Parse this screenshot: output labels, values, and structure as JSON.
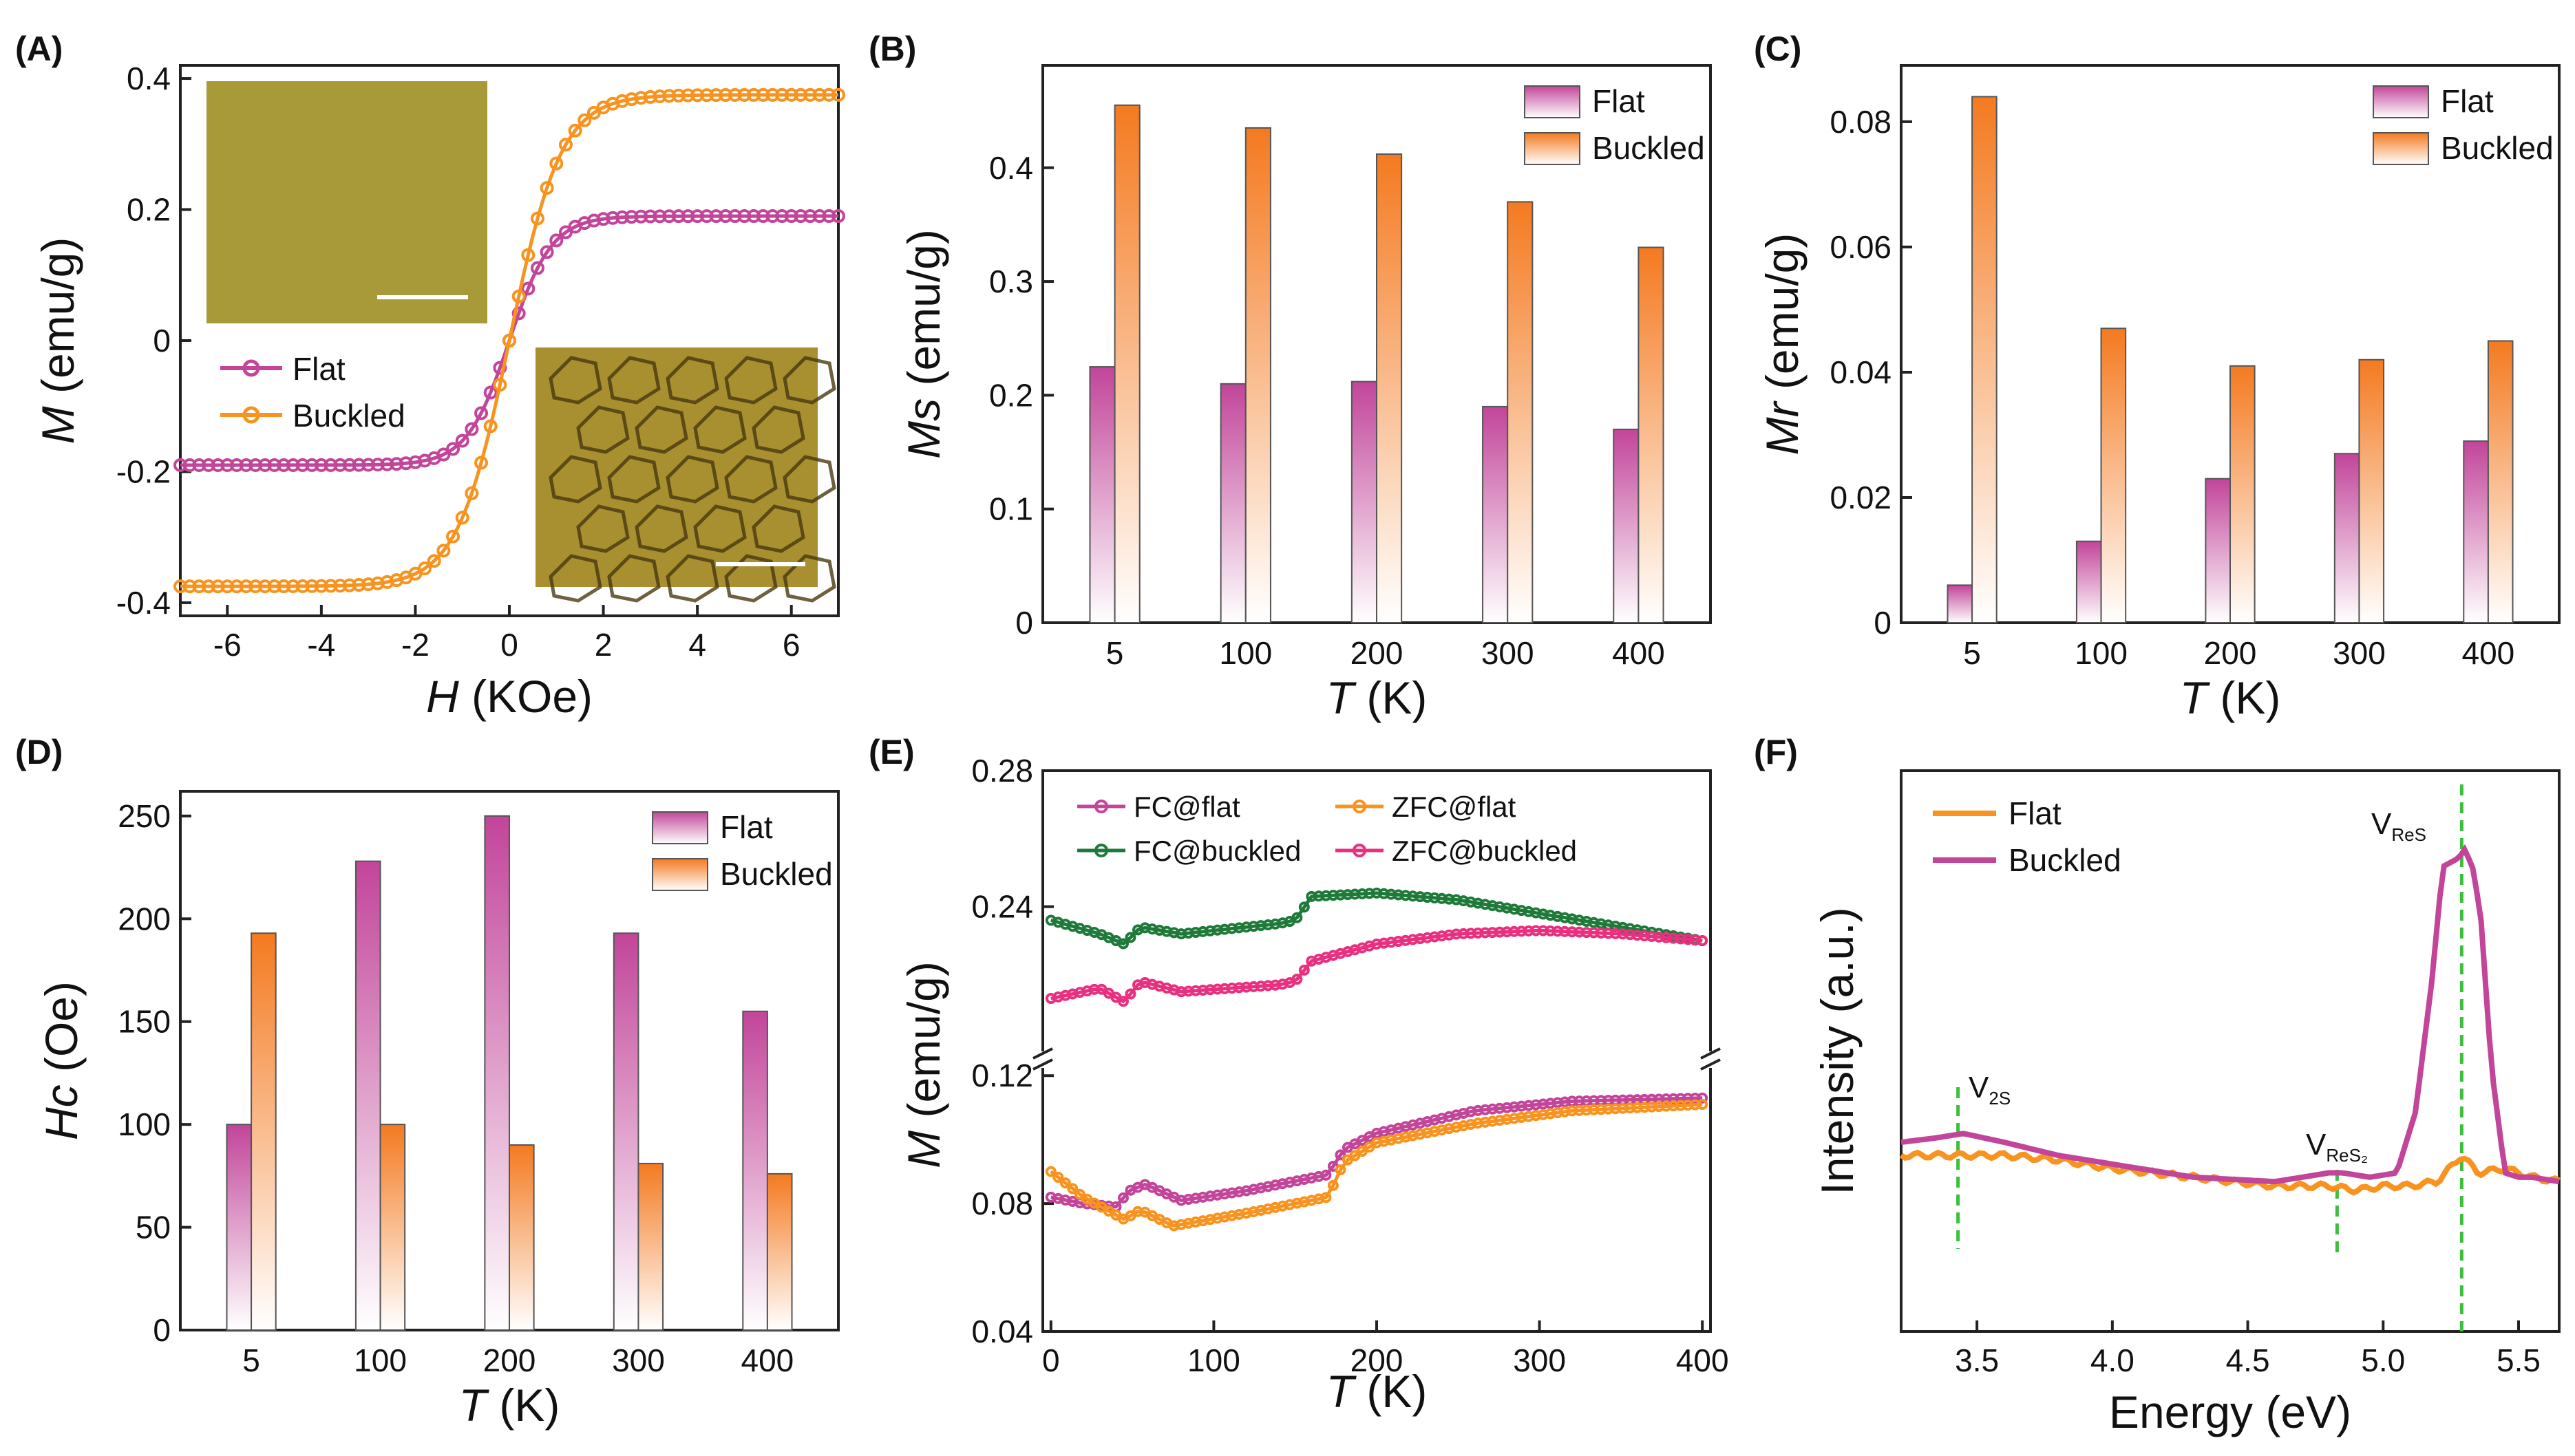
{
  "colors": {
    "flat_bar": "#c2459a",
    "buckled_bar": "#f47a20",
    "flat_line": "#c2459a",
    "buckled_line": "#f7931e",
    "fc_buckled": "#1f7a3a",
    "zfc_buckled": "#e8307f",
    "vline": "#3cc03c",
    "inset_flat": "#a89a38",
    "inset_buckled": "#a88f30"
  },
  "chart_data": [
    {
      "id": "A",
      "panel_label": "(A)",
      "type": "line",
      "xlabel_italic": "H",
      "xlabel_rest": " (KOe)",
      "ylabel_italic": "M",
      "ylabel_rest": " (emu/g)",
      "xlim": [
        -7,
        7
      ],
      "ylim": [
        -0.42,
        0.42
      ],
      "xticks": [
        -6,
        -4,
        -2,
        0,
        2,
        4,
        6
      ],
      "yticks": [
        -0.4,
        -0.2,
        0,
        0.2,
        0.4
      ],
      "ytick_labels": [
        "-0.4",
        "-0.2",
        "0",
        "0.2",
        "0.4"
      ],
      "legend": "middle-left",
      "insets": "two optical micrographs with scale bars (flat top-left, buckled bottom-right)",
      "series": [
        {
          "name": "Flat",
          "color_key": "flat_line",
          "saturation": 0.19,
          "width": 0.9
        },
        {
          "name": "Buckled",
          "color_key": "buckled_line",
          "saturation": 0.375,
          "width": 1.1
        }
      ]
    },
    {
      "id": "B",
      "panel_label": "(B)",
      "type": "bar",
      "xlabel_italic": "T",
      "xlabel_rest": " (K)",
      "ylabel_italic": "Ms",
      "ylabel_rest": " (emu/g)",
      "categories": [
        "5",
        "100",
        "200",
        "300",
        "400"
      ],
      "ylim": [
        0,
        0.49
      ],
      "yticks": [
        0,
        0.1,
        0.2,
        0.3,
        0.4
      ],
      "ytick_labels": [
        "0",
        "0.1",
        "0.2",
        "0.3",
        "0.4"
      ],
      "legend": "top-right",
      "series": [
        {
          "name": "Flat",
          "color_key": "flat_bar",
          "values": [
            0.225,
            0.21,
            0.212,
            0.19,
            0.17
          ]
        },
        {
          "name": "Buckled",
          "color_key": "buckled_bar",
          "values": [
            0.455,
            0.435,
            0.412,
            0.37,
            0.33
          ]
        }
      ]
    },
    {
      "id": "C",
      "panel_label": "(C)",
      "type": "bar",
      "xlabel_italic": "T",
      "xlabel_rest": " (K)",
      "ylabel_italic": "Mr",
      "ylabel_rest": " (emu/g)",
      "categories": [
        "5",
        "100",
        "200",
        "300",
        "400"
      ],
      "ylim": [
        0,
        0.089
      ],
      "yticks": [
        0,
        0.02,
        0.04,
        0.06,
        0.08
      ],
      "ytick_labels": [
        "0",
        "0.02",
        "0.04",
        "0.06",
        "0.08"
      ],
      "legend": "top-right",
      "series": [
        {
          "name": "Flat",
          "color_key": "flat_bar",
          "values": [
            0.006,
            0.013,
            0.023,
            0.027,
            0.029
          ]
        },
        {
          "name": "Buckled",
          "color_key": "buckled_bar",
          "values": [
            0.084,
            0.047,
            0.041,
            0.042,
            0.045
          ]
        }
      ]
    },
    {
      "id": "D",
      "panel_label": "(D)",
      "type": "bar",
      "xlabel_italic": "T",
      "xlabel_rest": " (K)",
      "ylabel_italic": "Hc",
      "ylabel_rest": " (Oe)",
      "categories": [
        "5",
        "100",
        "200",
        "300",
        "400"
      ],
      "ylim": [
        0,
        262
      ],
      "yticks": [
        0,
        50,
        100,
        150,
        200,
        250
      ],
      "ytick_labels": [
        "0",
        "50",
        "100",
        "150",
        "200",
        "250"
      ],
      "legend": "top-right",
      "series": [
        {
          "name": "Flat",
          "color_key": "flat_bar",
          "values": [
            100,
            228,
            250,
            193,
            155
          ]
        },
        {
          "name": "Buckled",
          "color_key": "buckled_bar",
          "values": [
            193,
            100,
            90,
            81,
            76
          ]
        }
      ]
    },
    {
      "id": "E",
      "panel_label": "(E)",
      "type": "line",
      "xlabel_italic": "T",
      "xlabel_rest": " (K)",
      "ylabel_italic": "M",
      "ylabel_rest": " (emu/g)",
      "xlim": [
        -5,
        405
      ],
      "xticks": [
        0,
        100,
        200,
        300,
        400
      ],
      "broken_y_axis": true,
      "lower_ylim": [
        0.04,
        0.125
      ],
      "upper_ylim": [
        0.195,
        0.28
      ],
      "yticks": [
        0.04,
        0.08,
        0.12,
        0.24,
        0.28
      ],
      "ytick_labels": [
        "0.04",
        "0.08",
        "0.12",
        "0.24",
        "0.28"
      ],
      "legend": "top",
      "series": [
        {
          "name": "FC@flat",
          "color_key": "flat_line",
          "x": [
            0,
            20,
            40,
            48,
            58,
            80,
            120,
            170,
            180,
            200,
            260,
            320,
            400
          ],
          "y": [
            0.082,
            0.08,
            0.079,
            0.084,
            0.086,
            0.081,
            0.084,
            0.089,
            0.097,
            0.102,
            0.109,
            0.112,
            0.113
          ]
        },
        {
          "name": "ZFC@flat",
          "color_key": "buckled_line",
          "x": [
            0,
            20,
            45,
            55,
            75,
            120,
            170,
            180,
            200,
            260,
            320,
            400
          ],
          "y": [
            0.09,
            0.082,
            0.075,
            0.078,
            0.073,
            0.077,
            0.082,
            0.093,
            0.099,
            0.105,
            0.109,
            0.111
          ]
        },
        {
          "name": "FC@buckled",
          "color_key": "fc_buckled",
          "x": [
            0,
            30,
            45,
            55,
            80,
            140,
            150,
            160,
            200,
            250,
            300,
            350,
            400
          ],
          "y": [
            0.236,
            0.232,
            0.229,
            0.234,
            0.232,
            0.235,
            0.236,
            0.243,
            0.244,
            0.242,
            0.238,
            0.234,
            0.23
          ]
        },
        {
          "name": "ZFC@buckled",
          "color_key": "zfc_buckled",
          "x": [
            0,
            30,
            45,
            55,
            80,
            140,
            150,
            160,
            200,
            250,
            300,
            350,
            400
          ],
          "y": [
            0.213,
            0.216,
            0.212,
            0.218,
            0.215,
            0.217,
            0.218,
            0.224,
            0.229,
            0.232,
            0.233,
            0.232,
            0.23
          ]
        }
      ]
    },
    {
      "id": "F",
      "panel_label": "(F)",
      "type": "line",
      "xlabel": "Energy (eV)",
      "ylabel": "Intensity (a.u.)",
      "xlim": [
        3.22,
        5.65
      ],
      "ylim": [
        0,
        1
      ],
      "xticks": [
        3.5,
        4.0,
        4.5,
        5.0,
        5.5
      ],
      "xtick_labels": [
        "3.5",
        "4.0",
        "4.5",
        "5.0",
        "5.5"
      ],
      "legend": "top-left",
      "annotations": [
        {
          "main": "V",
          "sub": "2S",
          "x": 3.43
        },
        {
          "main": "V",
          "sub": "ReS₂",
          "x": 4.83
        },
        {
          "main": "V",
          "sub": "ReS",
          "x": 5.29
        }
      ],
      "series": [
        {
          "name": "Flat",
          "color_key": "buckled_line",
          "x": [
            3.22,
            3.4,
            3.6,
            3.8,
            4.0,
            4.3,
            4.6,
            4.8,
            4.9,
            5.0,
            5.1,
            5.2,
            5.29,
            5.35,
            5.45,
            5.55,
            5.65
          ],
          "y": [
            0.3,
            0.3,
            0.3,
            0.29,
            0.27,
            0.25,
            0.23,
            0.23,
            0.22,
            0.23,
            0.23,
            0.24,
            0.3,
            0.26,
            0.27,
            0.25,
            0.24
          ]
        },
        {
          "name": "Buckled",
          "color_key": "flat_line",
          "x": [
            3.22,
            3.35,
            3.45,
            3.6,
            3.8,
            4.0,
            4.3,
            4.6,
            4.8,
            4.85,
            4.95,
            5.05,
            5.12,
            5.18,
            5.22,
            5.25,
            5.28,
            5.3,
            5.33,
            5.36,
            5.4,
            5.45,
            5.5,
            5.55,
            5.65
          ],
          "y": [
            0.33,
            0.34,
            0.35,
            0.33,
            0.3,
            0.28,
            0.25,
            0.24,
            0.26,
            0.26,
            0.25,
            0.26,
            0.4,
            0.7,
            0.96,
            0.97,
            0.98,
            1.0,
            0.96,
            0.85,
            0.5,
            0.26,
            0.25,
            0.25,
            0.24
          ]
        }
      ]
    }
  ]
}
